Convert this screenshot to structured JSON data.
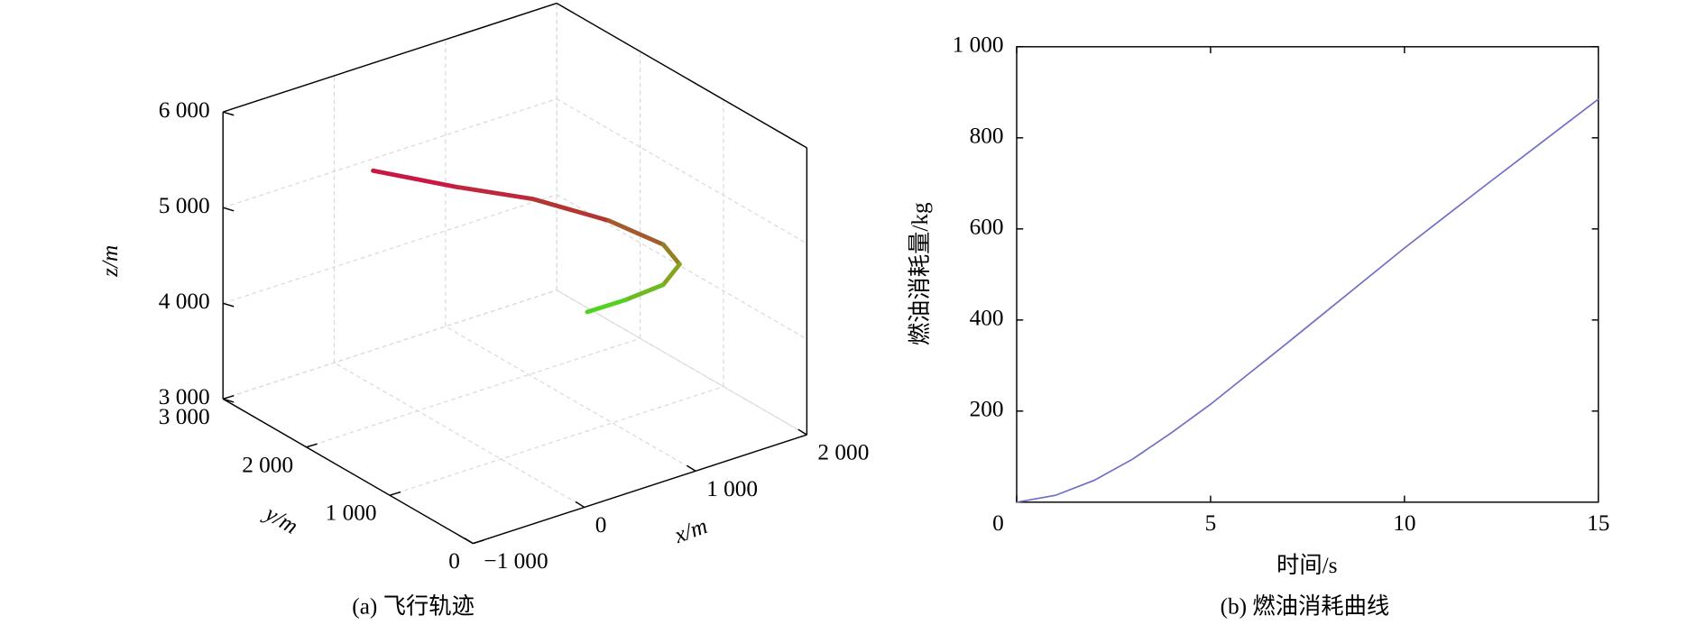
{
  "chart_data": [
    {
      "type": "line3d",
      "caption": "(a) 飞行轨迹",
      "xlabel": "x/m",
      "ylabel": "y/m",
      "zlabel": "z/m",
      "x": [
        49,
        652,
        1111,
        1495,
        1609,
        1456,
        1084,
        593,
        176
      ],
      "y": [
        2600,
        2400,
        2100,
        1700,
        1200,
        800,
        500,
        300,
        200
      ],
      "z": [
        5190,
        4892,
        4744,
        4573,
        4532,
        4586,
        4663,
        4791,
        4874
      ],
      "colors": [
        "#d0104a",
        "#b03a30",
        "#8aa020",
        "#44dd22"
      ],
      "xlim": [
        -1000,
        2000
      ],
      "ylim": [
        0,
        3000
      ],
      "zlim": [
        3000,
        6000
      ],
      "xticks": [
        {
          "value": -1000,
          "label": "−1 000"
        },
        0,
        {
          "value": 1000,
          "label": "1 000"
        },
        {
          "value": 2000,
          "label": "2 000"
        }
      ],
      "yticks": [
        0,
        {
          "value": 1000,
          "label": "1 000"
        },
        {
          "value": 2000,
          "label": "2 000"
        },
        {
          "value": 3000,
          "label": "3 000"
        }
      ],
      "zticks": [
        {
          "value": 3000,
          "label": "3 000"
        },
        {
          "value": 4000,
          "label": "4 000"
        },
        {
          "value": 5000,
          "label": "5 000"
        },
        {
          "value": 6000,
          "label": "6 000"
        }
      ],
      "grid": true
    },
    {
      "type": "line",
      "caption": "(b) 燃油消耗曲线",
      "xlabel": "时间/s",
      "ylabel": "燃油消耗量/kg",
      "x": [
        0,
        1,
        2,
        3,
        4,
        5,
        6,
        7,
        8,
        9,
        10,
        11,
        12,
        13,
        14,
        15
      ],
      "values": [
        0,
        15,
        48,
        95,
        153,
        215,
        283,
        351,
        420,
        489,
        558,
        624,
        690,
        755,
        820,
        885
      ],
      "color": "#6e6ec8",
      "xlim": [
        0,
        15
      ],
      "ylim": [
        0,
        1000
      ],
      "xticks": [
        0,
        5,
        10,
        15
      ],
      "yticks": [
        200,
        400,
        600,
        800,
        {
          "value": 1000,
          "label": "1 000"
        }
      ],
      "grid": false
    }
  ]
}
